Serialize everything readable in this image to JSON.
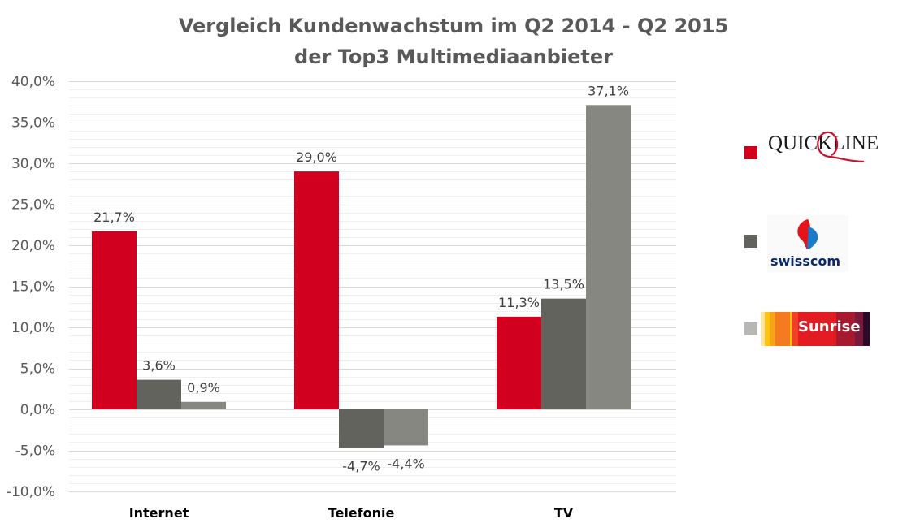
{
  "chart_data": {
    "type": "bar",
    "title": "Vergleich Kundenwachstum im Q2 2014 - Q2 2015",
    "subtitle": "der Top3 Multimediaanbieter",
    "xlabel": "",
    "ylabel": "",
    "categories": [
      "Internet",
      "Telefonie",
      "TV"
    ],
    "series": [
      {
        "name": "Quickline",
        "color": "#D2001E",
        "values": [
          21.7,
          29.0,
          11.3
        ],
        "labels": [
          "21,7%",
          "29,0%",
          "11,3%"
        ]
      },
      {
        "name": "Swisscom",
        "color": "#63635D",
        "values": [
          3.6,
          -4.7,
          13.5
        ],
        "labels": [
          "3,6%",
          "-4,7%",
          "13,5%"
        ]
      },
      {
        "name": "Sunrise",
        "color": "#878782",
        "values": [
          0.9,
          -4.4,
          37.1
        ],
        "labels": [
          "0,9%",
          "-4,4%",
          "37,1%"
        ]
      }
    ],
    "ylim": [
      -10,
      40
    ],
    "yticks": [
      40,
      35,
      30,
      25,
      20,
      15,
      10,
      5,
      0,
      -5,
      -10
    ],
    "ytick_labels": [
      "40,0%",
      "35,0%",
      "30,0%",
      "25,0%",
      "20,0%",
      "15,0%",
      "10,0%",
      "5,0%",
      "0,0%",
      "-5,0%",
      "-10,0%"
    ],
    "grid": true,
    "minor_grid_step": 1,
    "legend_position": "right",
    "legend": [
      {
        "name": "Quickline",
        "logo_text": "QUICKLINE",
        "swatch_color": "#D2001E"
      },
      {
        "name": "Swisscom",
        "logo_text": "swisscom",
        "swatch_color": "#63635D"
      },
      {
        "name": "Sunrise",
        "logo_text": "Sunrise",
        "swatch_color": "#B7B7B3"
      }
    ]
  }
}
